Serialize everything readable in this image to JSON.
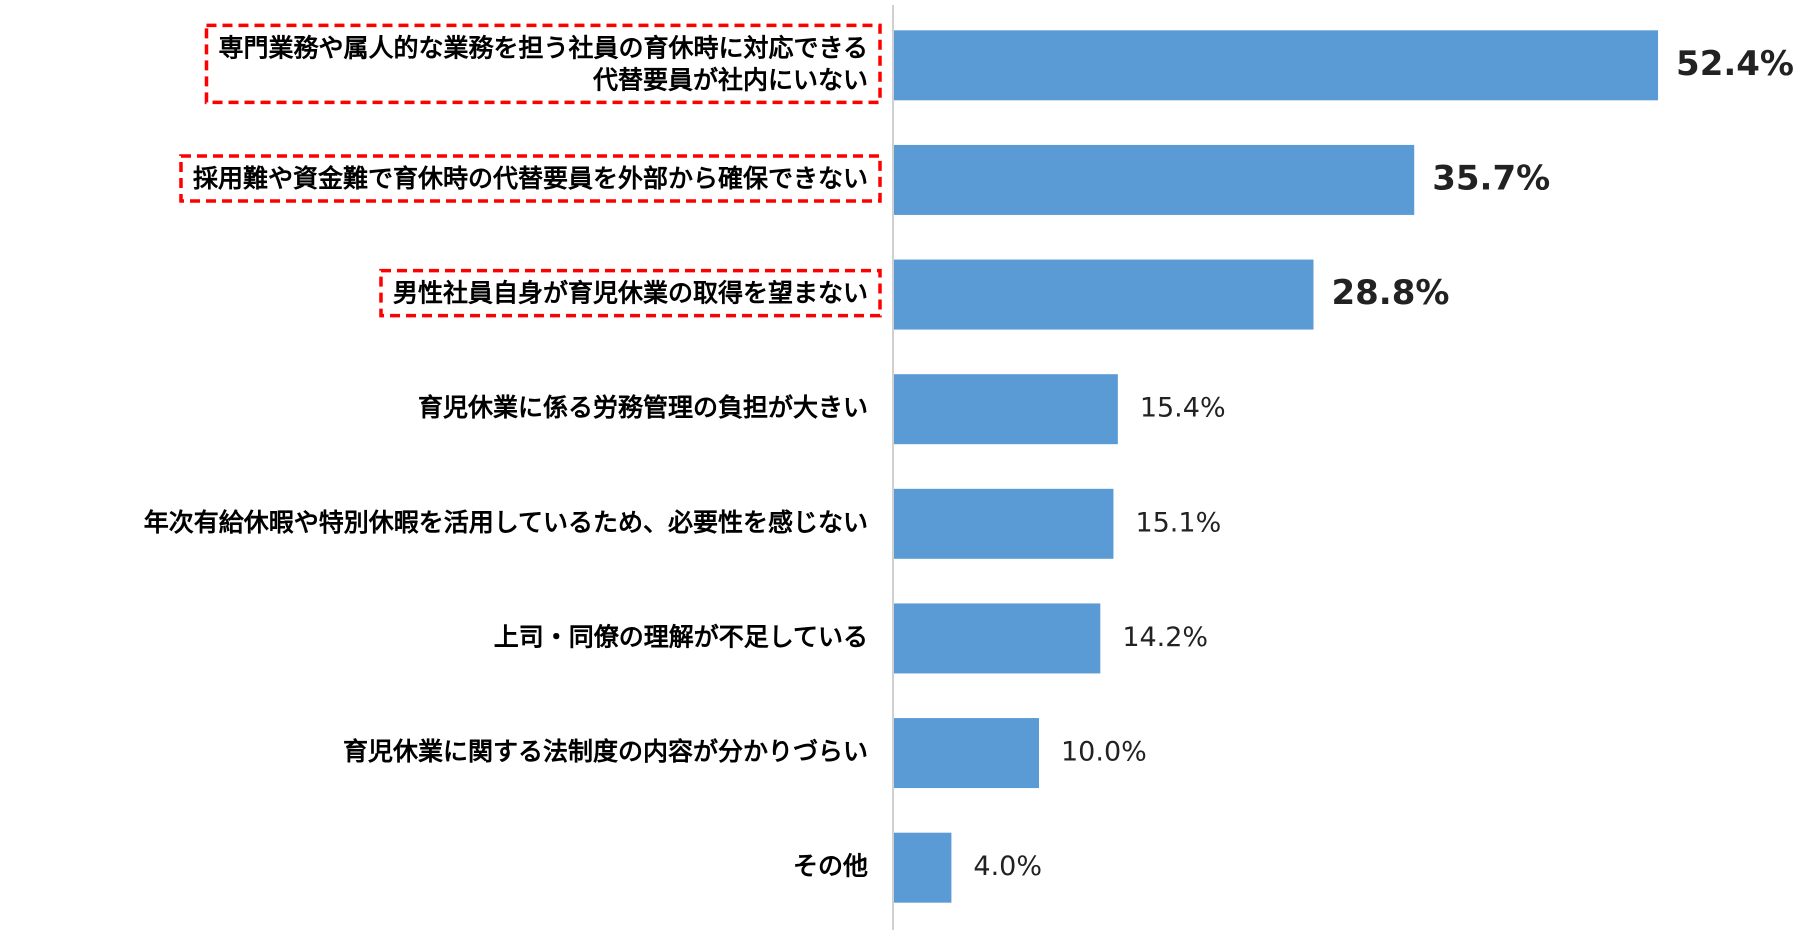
{
  "chart_data": {
    "type": "hbar",
    "categories": [
      "専門業務や属人的な業務を担う社員の育休時に対応できる\n代替要員が社内にいない",
      "採用難や資金難で育休時の代替要員を外部から確保できない",
      "男性社員自身が育児休業の取得を望まない",
      "育児休業に係る労務管理の負担が大きい",
      "年次有給休暇や特別休暇を活用しているため、必要性を感じない",
      "上司・同僚の理解が不足している",
      "育児休業に関する法制度の内容が分かりづらい",
      "その他"
    ],
    "values": [
      52.4,
      35.7,
      28.8,
      15.4,
      15.1,
      14.2,
      10.0,
      4.0
    ],
    "value_labels": [
      "52.4%",
      "35.7%",
      "28.8%",
      "15.4%",
      "15.1%",
      "14.2%",
      "10.0%",
      "4.0%"
    ],
    "color": "#5b9bd5",
    "highlighted": [
      true,
      true,
      true,
      false,
      false,
      false,
      false,
      false
    ],
    "highlight_color": "#ff0000",
    "xlim": [
      0,
      60
    ]
  }
}
